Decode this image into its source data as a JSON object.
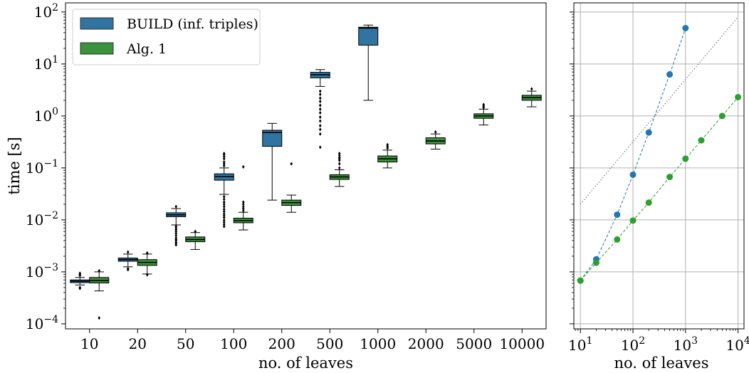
{
  "chart_data": [
    {
      "type": "box",
      "xlabel": "no. of leaves",
      "ylabel": "time [s]",
      "yscale": "log",
      "ylim": [
        8e-05,
        150
      ],
      "yticks": [
        {
          "value": 0.0001,
          "base": "10",
          "exp": "−4"
        },
        {
          "value": 0.001,
          "base": "10",
          "exp": "−3"
        },
        {
          "value": 0.01,
          "base": "10",
          "exp": "−2"
        },
        {
          "value": 0.1,
          "base": "10",
          "exp": "−1"
        },
        {
          "value": 1,
          "base": "10",
          "exp": "0"
        },
        {
          "value": 10,
          "base": "10",
          "exp": "1"
        },
        {
          "value": 100,
          "base": "10",
          "exp": "2"
        }
      ],
      "categories": [
        "10",
        "20",
        "50",
        "100",
        "200",
        "500",
        "1000",
        "2000",
        "5000",
        "10000"
      ],
      "legend_position": "top-left",
      "grid": false,
      "series": [
        {
          "name": "BUILD (inf. triples)",
          "color": "#3274a1",
          "boxes": [
            {
              "whislo": 0.00056,
              "q1": 0.00062,
              "med": 0.00066,
              "q3": 0.0007,
              "whishi": 0.00078,
              "fliers": [
                0.0005,
                0.00048,
                0.00085,
                0.0009,
                0.00094
              ]
            },
            {
              "whislo": 0.00125,
              "q1": 0.0016,
              "med": 0.00172,
              "q3": 0.00185,
              "whishi": 0.0022,
              "fliers": [
                0.00115,
                0.0011,
                0.0024
              ]
            },
            {
              "whislo": 0.008,
              "q1": 0.0115,
              "med": 0.0125,
              "q3": 0.0137,
              "whishi": 0.0165,
              "fliers": [
                0.0075,
                0.007,
                0.0065,
                0.006,
                0.0055,
                0.005,
                0.0045,
                0.0042,
                0.004,
                0.0037,
                0.0035,
                0.0033,
                0.018
              ]
            },
            {
              "whislo": 0.031,
              "q1": 0.058,
              "med": 0.068,
              "q3": 0.077,
              "whishi": 0.1,
              "fliers": [
                0.028,
                0.025,
                0.022,
                0.02,
                0.018,
                0.016,
                0.0145,
                0.013,
                0.012,
                0.011,
                0.0098,
                0.009,
                0.0082,
                0.0075,
                0.11,
                0.12,
                0.13,
                0.15,
                0.165,
                0.18,
                0.19
              ]
            },
            {
              "whislo": 0.024,
              "q1": 0.26,
              "med": 0.48,
              "q3": 0.53,
              "whishi": 0.72,
              "fliers": []
            },
            {
              "whislo": 3.7,
              "q1": 5.4,
              "med": 6.2,
              "q3": 6.9,
              "whishi": 7.8,
              "fliers": [
                3.0,
                2.6,
                2.2,
                1.9,
                1.6,
                1.35,
                1.15,
                0.95,
                0.8,
                0.65,
                0.55,
                0.45,
                0.25
              ]
            },
            {
              "whislo": 2.0,
              "q1": 23,
              "med": 49,
              "q3": 51,
              "whishi": 56,
              "fliers": []
            }
          ]
        },
        {
          "name": "Alg. 1",
          "color": "#3a923a",
          "boxes": [
            {
              "whislo": 0.00043,
              "q1": 0.00061,
              "med": 0.00068,
              "q3": 0.00078,
              "whishi": 0.001,
              "fliers": [
                0.00013,
                0.00105
              ]
            },
            {
              "whislo": 0.00091,
              "q1": 0.00133,
              "med": 0.00152,
              "q3": 0.00172,
              "whishi": 0.0022,
              "fliers": [
                0.00088,
                0.0023
              ]
            },
            {
              "whislo": 0.0027,
              "q1": 0.0038,
              "med": 0.0042,
              "q3": 0.0047,
              "whishi": 0.0057,
              "fliers": [
                0.006
              ]
            },
            {
              "whislo": 0.0064,
              "q1": 0.0088,
              "med": 0.0097,
              "q3": 0.0108,
              "whishi": 0.014,
              "fliers": [
                0.015,
                0.0165,
                0.018,
                0.02,
                0.022,
                0.105
              ]
            },
            {
              "whislo": 0.014,
              "q1": 0.019,
              "med": 0.0215,
              "q3": 0.024,
              "whishi": 0.03,
              "fliers": [
                0.12
              ]
            },
            {
              "whislo": 0.044,
              "q1": 0.06,
              "med": 0.067,
              "q3": 0.074,
              "whishi": 0.092,
              "fliers": [
                0.1,
                0.12,
                0.14,
                0.15,
                0.16,
                0.175,
                0.19
              ]
            },
            {
              "whislo": 0.1,
              "q1": 0.13,
              "med": 0.15,
              "q3": 0.17,
              "whishi": 0.22,
              "fliers": [
                0.24,
                0.26,
                0.28
              ]
            },
            {
              "whislo": 0.23,
              "q1": 0.29,
              "med": 0.33,
              "q3": 0.38,
              "whishi": 0.45,
              "fliers": [
                0.49
              ]
            },
            {
              "whislo": 0.67,
              "q1": 0.9,
              "med": 1.0,
              "q3": 1.1,
              "whishi": 1.35,
              "fliers": [
                1.45,
                1.55,
                1.65
              ]
            },
            {
              "whislo": 1.5,
              "q1": 2.0,
              "med": 2.25,
              "q3": 2.5,
              "whishi": 3.0,
              "fliers": [
                3.3
              ]
            }
          ]
        }
      ]
    },
    {
      "type": "line",
      "xlabel": "no. of leaves",
      "xscale": "log",
      "yscale": "log",
      "xlim": [
        7.5,
        13000
      ],
      "ylim": [
        8e-05,
        150
      ],
      "grid": true,
      "xticks": [
        {
          "value": 10,
          "base": "10",
          "exp": "1"
        },
        {
          "value": 100,
          "base": "10",
          "exp": "2"
        },
        {
          "value": 1000,
          "base": "10",
          "exp": "3"
        },
        {
          "value": 10000,
          "base": "10",
          "exp": "4"
        }
      ],
      "series": [
        {
          "color": "#1f77b4",
          "style": "dashed-markers",
          "x": [
            10,
            20,
            50,
            100,
            200,
            500,
            1000
          ],
          "y": [
            0.00068,
            0.00174,
            0.0126,
            0.074,
            0.48,
            6.3,
            49
          ]
        },
        {
          "color": "#2ca02c",
          "style": "dashed-markers",
          "x": [
            10,
            20,
            50,
            100,
            200,
            500,
            1000,
            2000,
            5000,
            10000
          ],
          "y": [
            0.00068,
            0.0015,
            0.0042,
            0.0097,
            0.0215,
            0.067,
            0.15,
            0.34,
            1.0,
            2.3
          ]
        },
        {
          "color": "#7f7f7f",
          "style": "dotted",
          "x": [
            10,
            10000
          ],
          "y": [
            0.02,
            80
          ]
        }
      ]
    }
  ]
}
